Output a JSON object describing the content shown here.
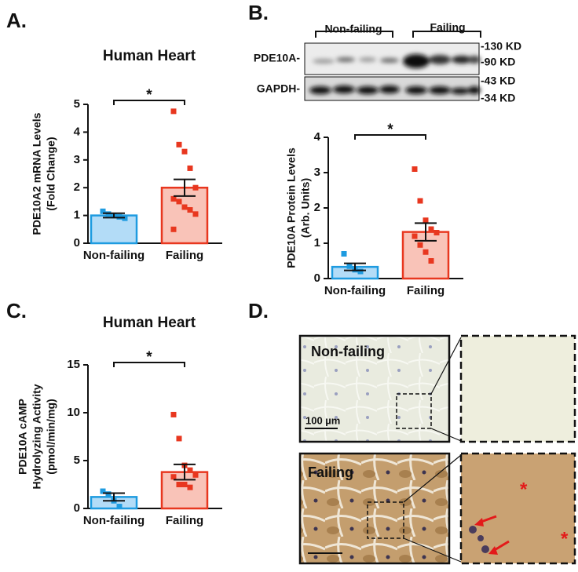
{
  "panels": [
    "A.",
    "B.",
    "C.",
    "D."
  ],
  "chart_data": [
    {
      "type": "bar",
      "title": "Human Heart",
      "y_label": [
        "PDE10A2 mRNA Levels",
        "(Fold Change)"
      ],
      "categories": [
        "Non-failing",
        "Failing"
      ],
      "values": [
        1.0,
        2.0
      ],
      "errors": [
        0.08,
        0.3
      ],
      "points": [
        [
          1.15,
          1.05,
          1.0,
          0.95,
          0.9
        ],
        [
          4.75,
          3.55,
          3.3,
          2.7,
          2.0,
          1.6,
          1.5,
          1.3,
          1.2,
          1.05,
          0.5
        ]
      ],
      "colors": [
        "#1e9be0",
        "#e8371f"
      ],
      "fills": [
        "#b3dcf7",
        "#f9c3b8"
      ],
      "ylim": [
        0,
        5
      ],
      "yticks": [
        0,
        1,
        2,
        3,
        4,
        5
      ],
      "significance": "*"
    },
    {
      "type": "bar",
      "y_label": [
        "PDE10A Protein Levels",
        "(Arb. Units)"
      ],
      "categories": [
        "Non-failing",
        "Failing"
      ],
      "values": [
        0.33,
        1.32
      ],
      "errors": [
        0.1,
        0.25
      ],
      "points": [
        [
          0.7,
          0.35,
          0.25,
          0.2
        ],
        [
          3.1,
          2.2,
          1.65,
          1.4,
          1.3,
          1.2,
          0.95,
          0.75,
          0.5
        ]
      ],
      "colors": [
        "#1e9be0",
        "#e8371f"
      ],
      "fills": [
        "#b3dcf7",
        "#f9c3b8"
      ],
      "ylim": [
        0,
        4
      ],
      "yticks": [
        0,
        1,
        2,
        3,
        4
      ],
      "significance": "*"
    },
    {
      "type": "bar",
      "title": "Human Heart",
      "y_label": [
        "PDE10A cAMP",
        "Hydrolyzing Activity",
        "(pmol/min/mg)"
      ],
      "categories": [
        "Non-failing",
        "Failing"
      ],
      "values": [
        1.2,
        3.8
      ],
      "errors": [
        0.4,
        0.8
      ],
      "points": [
        [
          1.8,
          1.5,
          0.8,
          0.2
        ],
        [
          9.8,
          7.3,
          4.5,
          4.0,
          3.5,
          3.3,
          2.5,
          2.5,
          2.2
        ]
      ],
      "colors": [
        "#1e9be0",
        "#e8371f"
      ],
      "fills": [
        "#b3dcf7",
        "#f9c3b8"
      ],
      "ylim": [
        0,
        15
      ],
      "yticks": [
        0,
        5,
        10,
        15
      ],
      "significance": "*"
    }
  ],
  "blot": {
    "groups": [
      "Non-failing",
      "Failing"
    ],
    "rows": [
      "PDE10A-",
      "GAPDH-"
    ],
    "markers": [
      "-130 KD",
      "-90 KD",
      "-43 KD",
      "-34 KD"
    ]
  },
  "histology": {
    "labels": [
      "Non-failing",
      "Failing"
    ],
    "scale": "100 µm",
    "asterisk": "*"
  }
}
